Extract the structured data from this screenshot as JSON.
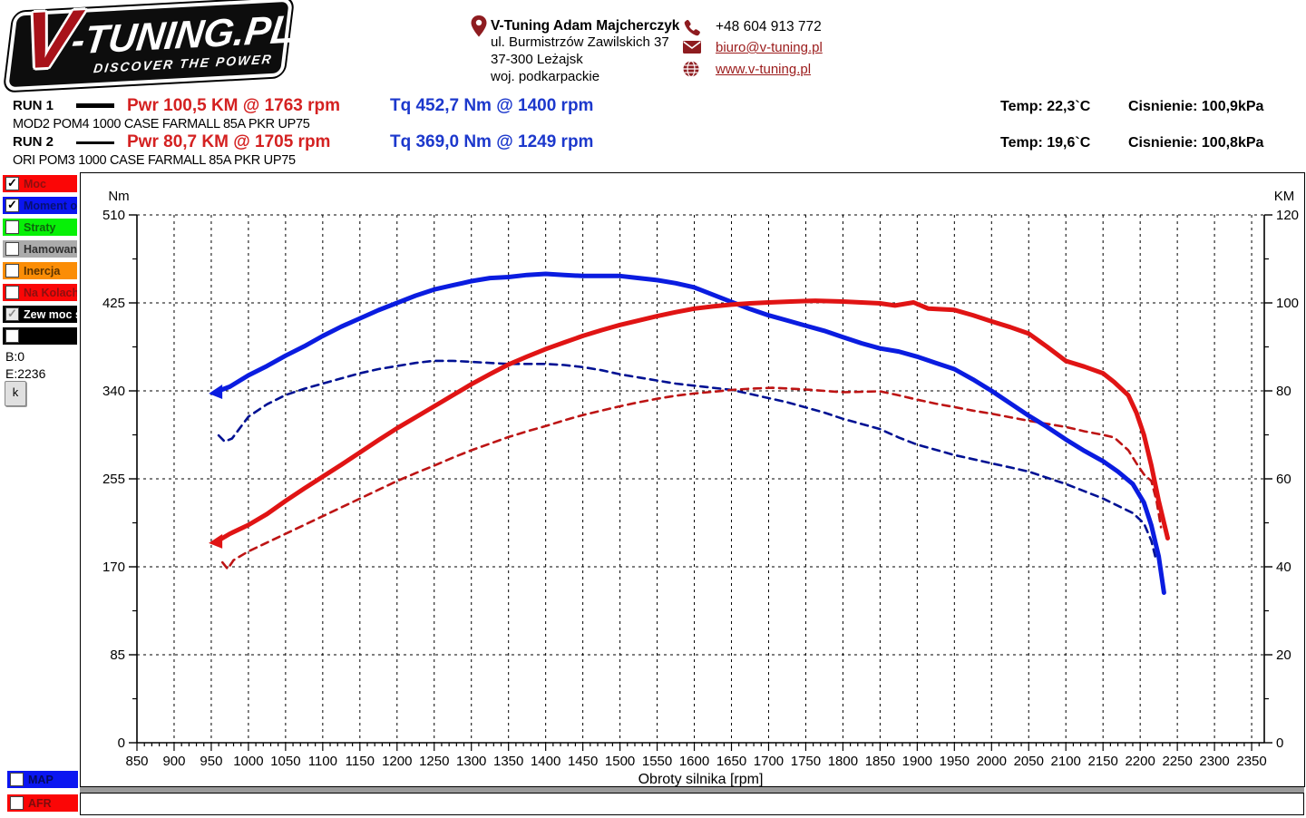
{
  "logo": {
    "brand_v": "V",
    "brand_rest": "-TUNING.PL",
    "tagline": "DISCOVER THE POWER"
  },
  "contact": {
    "name": "V-Tuning Adam Majcherczyk",
    "address_line1": "ul. Burmistrzów Zawilskich 37",
    "address_line2": "37-300 Leżajsk",
    "address_line3": "woj. podkarpackie",
    "phone": "+48 604 913 772",
    "email": "biuro@v-tuning.pl",
    "website": "www.v-tuning.pl"
  },
  "runs": [
    {
      "label": "RUN 1",
      "desc": "MOD2 POM4 1000 CASE FARMALL 85A PKR UP75",
      "power": "Pwr  100,5 KM @ 1763 rpm",
      "torque": "Tq 452,7 Nm @ 1400 rpm",
      "temp": "Temp: 22,3`C",
      "pressure": "Cisnienie: 100,9kPa"
    },
    {
      "label": "RUN 2",
      "desc": "ORI POM3 1000 CASE FARMALL 85A PKR UP75",
      "power": "Pwr  80,7 KM @ 1705 rpm",
      "torque": "Tq 369,0 Nm @ 1249 rpm",
      "temp": "Temp: 19,6`C",
      "pressure": "Cisnienie: 100,8kPa"
    }
  ],
  "sidebar": {
    "channels": [
      {
        "label": "Moc",
        "color": "#fb0606",
        "text_color": "#8d0f0f",
        "checked": true,
        "disabled": false
      },
      {
        "label": "Moment obr",
        "color": "#0b16f1",
        "text_color": "#061073",
        "checked": true,
        "disabled": false
      },
      {
        "label": "Straty",
        "color": "#07f007",
        "text_color": "#0d650d",
        "checked": false,
        "disabled": false
      },
      {
        "label": "Hamowana",
        "color": "#ababab",
        "text_color": "#303030",
        "checked": false,
        "disabled": false
      },
      {
        "label": "Inercja",
        "color": "#fb8d06",
        "text_color": "#5c3300",
        "checked": false,
        "disabled": false
      },
      {
        "label": "Na Kolach",
        "color": "#fb0606",
        "text_color": "#8d0f0f",
        "checked": false,
        "disabled": false
      },
      {
        "label": "Zew moc str",
        "color": "#000000",
        "text_color": "#ffffff",
        "checked": true,
        "disabled": true
      },
      {
        "label": "",
        "color": "#000000",
        "text_color": "#ffffff",
        "checked": false,
        "disabled": false
      }
    ],
    "b_value": "B:0",
    "e_value": "E:2236",
    "k_button": "k",
    "bottom_channels": [
      {
        "label": "MAP",
        "color": "#0b16f1",
        "text_color": "#04095e",
        "checked": false,
        "disabled": false
      },
      {
        "label": "AFR",
        "color": "#fb0606",
        "text_color": "#7e0c0c",
        "checked": false,
        "disabled": false
      }
    ]
  },
  "chart_data": {
    "type": "line",
    "xlabel": "Obroty silnika [rpm]",
    "grid": true,
    "x_axis": {
      "min": 850,
      "max": 2367,
      "tick_min": 850,
      "tick_max": 2350,
      "tick_step": 50,
      "minor_step": 10
    },
    "left_axis": {
      "label": "Nm",
      "min": 0,
      "max": 510,
      "ticks": [
        0,
        85,
        170,
        255,
        340,
        425,
        510
      ]
    },
    "right_axis": {
      "label": "KM",
      "min": 0,
      "max": 120,
      "ticks": [
        0,
        20,
        40,
        60,
        80,
        100,
        120
      ]
    },
    "km_to_nm_factor": 4.25,
    "series": [
      {
        "name": "torque-ori-run2",
        "axis": "Nm",
        "color": "#001193",
        "style": "dashed",
        "width": 2.6,
        "points": [
          [
            960,
            297
          ],
          [
            968,
            291
          ],
          [
            978,
            294
          ],
          [
            1000,
            315
          ],
          [
            1025,
            327
          ],
          [
            1050,
            336
          ],
          [
            1075,
            342
          ],
          [
            1100,
            347
          ],
          [
            1125,
            352
          ],
          [
            1150,
            357
          ],
          [
            1175,
            361
          ],
          [
            1200,
            364
          ],
          [
            1225,
            367
          ],
          [
            1249,
            369
          ],
          [
            1275,
            369
          ],
          [
            1300,
            368
          ],
          [
            1325,
            367
          ],
          [
            1350,
            366
          ],
          [
            1375,
            366
          ],
          [
            1400,
            366
          ],
          [
            1425,
            365
          ],
          [
            1450,
            363
          ],
          [
            1475,
            360
          ],
          [
            1500,
            356
          ],
          [
            1525,
            353
          ],
          [
            1550,
            350
          ],
          [
            1575,
            347
          ],
          [
            1600,
            345
          ],
          [
            1625,
            343
          ],
          [
            1650,
            341
          ],
          [
            1675,
            337
          ],
          [
            1700,
            333
          ],
          [
            1725,
            329
          ],
          [
            1750,
            324
          ],
          [
            1775,
            319
          ],
          [
            1800,
            313
          ],
          [
            1825,
            308
          ],
          [
            1850,
            303
          ],
          [
            1875,
            295
          ],
          [
            1900,
            288
          ],
          [
            1925,
            283
          ],
          [
            1950,
            278
          ],
          [
            1975,
            274
          ],
          [
            2000,
            270
          ],
          [
            2025,
            266
          ],
          [
            2050,
            262
          ],
          [
            2075,
            256
          ],
          [
            2100,
            250
          ],
          [
            2125,
            243
          ],
          [
            2150,
            236
          ],
          [
            2170,
            229
          ],
          [
            2190,
            222
          ],
          [
            2205,
            212
          ],
          [
            2215,
            195
          ],
          [
            2222,
            175
          ]
        ]
      },
      {
        "name": "power-ori-run2",
        "axis": "KM",
        "color": "#bd1414",
        "style": "dashed",
        "width": 2.6,
        "points": [
          [
            965,
            41
          ],
          [
            972,
            39.5
          ],
          [
            980,
            41.5
          ],
          [
            1000,
            43.5
          ],
          [
            1025,
            45.5
          ],
          [
            1050,
            47.5
          ],
          [
            1075,
            49.5
          ],
          [
            1100,
            51.5
          ],
          [
            1125,
            53.5
          ],
          [
            1150,
            55.5
          ],
          [
            1175,
            57.5
          ],
          [
            1200,
            59.5
          ],
          [
            1225,
            61.3
          ],
          [
            1250,
            63
          ],
          [
            1275,
            64.8
          ],
          [
            1300,
            66.5
          ],
          [
            1325,
            68
          ],
          [
            1350,
            69.5
          ],
          [
            1375,
            70.8
          ],
          [
            1400,
            72
          ],
          [
            1425,
            73.3
          ],
          [
            1450,
            74.5
          ],
          [
            1475,
            75.5
          ],
          [
            1500,
            76.5
          ],
          [
            1525,
            77.4
          ],
          [
            1550,
            78.2
          ],
          [
            1575,
            78.9
          ],
          [
            1600,
            79.4
          ],
          [
            1625,
            79.8
          ],
          [
            1650,
            80.2
          ],
          [
            1675,
            80.5
          ],
          [
            1705,
            80.7
          ],
          [
            1730,
            80.5
          ],
          [
            1750,
            80.3
          ],
          [
            1775,
            80
          ],
          [
            1800,
            79.7
          ],
          [
            1825,
            79.8
          ],
          [
            1850,
            79.9
          ],
          [
            1875,
            79
          ],
          [
            1900,
            78
          ],
          [
            1925,
            77.1
          ],
          [
            1950,
            76.3
          ],
          [
            1975,
            75.5
          ],
          [
            2000,
            74.8
          ],
          [
            2025,
            74
          ],
          [
            2050,
            73.2
          ],
          [
            2075,
            72.5
          ],
          [
            2100,
            71.8
          ],
          [
            2125,
            70.8
          ],
          [
            2150,
            70
          ],
          [
            2165,
            69.4
          ],
          [
            2184,
            66.5
          ],
          [
            2195,
            63.5
          ],
          [
            2205,
            61
          ],
          [
            2215,
            59.5
          ],
          [
            2222,
            55
          ],
          [
            2228,
            49
          ]
        ]
      },
      {
        "name": "torque-mod-run1",
        "axis": "Nm",
        "color": "#0a1ce0",
        "style": "solid",
        "width": 5,
        "points": [
          [
            960,
            340
          ],
          [
            975,
            344
          ],
          [
            1000,
            355
          ],
          [
            1025,
            364
          ],
          [
            1050,
            374
          ],
          [
            1075,
            383
          ],
          [
            1100,
            393
          ],
          [
            1125,
            402
          ],
          [
            1150,
            410
          ],
          [
            1175,
            418
          ],
          [
            1200,
            425
          ],
          [
            1225,
            432
          ],
          [
            1250,
            438
          ],
          [
            1275,
            442
          ],
          [
            1300,
            446
          ],
          [
            1325,
            449
          ],
          [
            1350,
            450
          ],
          [
            1375,
            452
          ],
          [
            1400,
            453
          ],
          [
            1425,
            452
          ],
          [
            1450,
            451
          ],
          [
            1475,
            451
          ],
          [
            1500,
            451
          ],
          [
            1525,
            449
          ],
          [
            1550,
            447
          ],
          [
            1575,
            444
          ],
          [
            1600,
            440
          ],
          [
            1625,
            433
          ],
          [
            1650,
            426
          ],
          [
            1675,
            419
          ],
          [
            1700,
            413
          ],
          [
            1725,
            408
          ],
          [
            1750,
            403
          ],
          [
            1775,
            398
          ],
          [
            1800,
            392
          ],
          [
            1825,
            386
          ],
          [
            1850,
            381
          ],
          [
            1875,
            378
          ],
          [
            1900,
            373
          ],
          [
            1925,
            367
          ],
          [
            1950,
            361
          ],
          [
            1975,
            351
          ],
          [
            2000,
            340
          ],
          [
            2025,
            328
          ],
          [
            2050,
            316
          ],
          [
            2075,
            305
          ],
          [
            2100,
            293
          ],
          [
            2125,
            282
          ],
          [
            2150,
            272
          ],
          [
            2170,
            262
          ],
          [
            2190,
            250
          ],
          [
            2205,
            232
          ],
          [
            2215,
            210
          ],
          [
            2225,
            180
          ],
          [
            2232,
            145
          ]
        ]
      },
      {
        "name": "power-mod-run1",
        "axis": "KM",
        "color": "#e01414",
        "style": "solid",
        "width": 5,
        "points": [
          [
            960,
            46
          ],
          [
            975,
            47.5
          ],
          [
            1000,
            49.5
          ],
          [
            1025,
            52
          ],
          [
            1050,
            55
          ],
          [
            1075,
            57.8
          ],
          [
            1100,
            60.5
          ],
          [
            1125,
            63.2
          ],
          [
            1150,
            66
          ],
          [
            1175,
            68.8
          ],
          [
            1200,
            71.5
          ],
          [
            1225,
            74
          ],
          [
            1250,
            76.5
          ],
          [
            1275,
            79
          ],
          [
            1300,
            81.5
          ],
          [
            1325,
            83.8
          ],
          [
            1350,
            86
          ],
          [
            1375,
            87.8
          ],
          [
            1400,
            89.5
          ],
          [
            1425,
            91
          ],
          [
            1450,
            92.5
          ],
          [
            1475,
            93.8
          ],
          [
            1500,
            95
          ],
          [
            1525,
            96
          ],
          [
            1550,
            97
          ],
          [
            1575,
            97.9
          ],
          [
            1600,
            98.7
          ],
          [
            1625,
            99.2
          ],
          [
            1650,
            99.6
          ],
          [
            1675,
            99.9
          ],
          [
            1700,
            100.1
          ],
          [
            1730,
            100.3
          ],
          [
            1763,
            100.5
          ],
          [
            1800,
            100.3
          ],
          [
            1825,
            100.1
          ],
          [
            1850,
            99.9
          ],
          [
            1870,
            99.4
          ],
          [
            1895,
            100.1
          ],
          [
            1915,
            98.7
          ],
          [
            1950,
            98.4
          ],
          [
            1975,
            97.2
          ],
          [
            2000,
            95.8
          ],
          [
            2025,
            94.5
          ],
          [
            2050,
            93
          ],
          [
            2075,
            90
          ],
          [
            2100,
            86.8
          ],
          [
            2125,
            85.5
          ],
          [
            2150,
            84
          ],
          [
            2165,
            82
          ],
          [
            2184,
            79
          ],
          [
            2195,
            75
          ],
          [
            2205,
            70
          ],
          [
            2215,
            63
          ],
          [
            2225,
            55
          ],
          [
            2237,
            46.5
          ]
        ]
      }
    ]
  }
}
